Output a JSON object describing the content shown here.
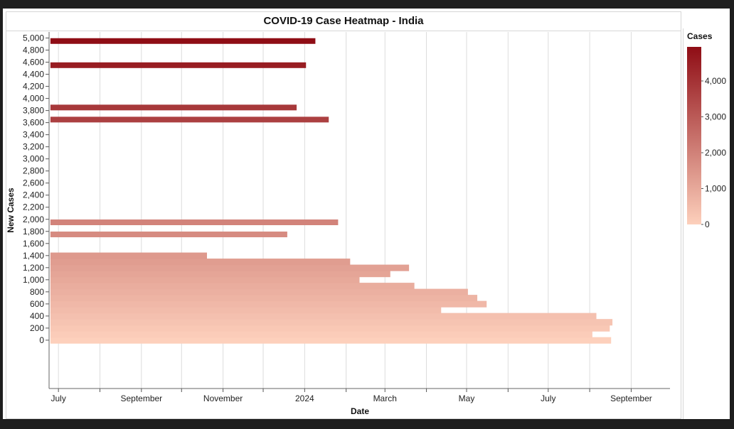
{
  "chart_data": {
    "type": "heatmap",
    "title": "COVID-19 Case Heatmap - India",
    "xlabel": "Date",
    "ylabel": "New Cases",
    "x_ticks": [
      "July",
      "September",
      "November",
      "2024",
      "March",
      "May",
      "July",
      "September"
    ],
    "x_range": [
      "2023-06-24",
      "2024-09-30"
    ],
    "y_ticks": [
      0,
      200,
      400,
      600,
      800,
      "1,000",
      "1,200",
      "1,400",
      "1,600",
      "1,800",
      "2,000",
      "2,200",
      "2,400",
      "2,600",
      "2,800",
      "3,000",
      "3,200",
      "3,400",
      "3,600",
      "3,800",
      "4,000",
      "4,200",
      "4,400",
      "4,600",
      "4,800",
      "5,000"
    ],
    "ylim": [
      -800,
      5100
    ],
    "grid": true,
    "legend": {
      "title": "Cases",
      "position": "right",
      "ticks": [
        "4,000",
        "3,000",
        "2,000",
        "1,000",
        "0"
      ],
      "range": [
        0,
        4950
      ],
      "color_low": "#fdd0bc",
      "color_high": "#8f0d15"
    },
    "bars": [
      {
        "cases": 0,
        "end": "2024-08-17"
      },
      {
        "cases": 100,
        "end": "2024-08-03"
      },
      {
        "cases": 200,
        "end": "2024-08-16"
      },
      {
        "cases": 300,
        "end": "2024-08-18"
      },
      {
        "cases": 400,
        "end": "2024-08-06"
      },
      {
        "cases": 500,
        "end": "2024-04-12"
      },
      {
        "cases": 600,
        "end": "2024-05-16"
      },
      {
        "cases": 700,
        "end": "2024-05-09"
      },
      {
        "cases": 800,
        "end": "2024-05-02"
      },
      {
        "cases": 900,
        "end": "2024-03-23"
      },
      {
        "cases": 1000,
        "end": "2024-02-11"
      },
      {
        "cases": 1100,
        "end": "2024-03-05"
      },
      {
        "cases": 1200,
        "end": "2024-03-19"
      },
      {
        "cases": 1300,
        "end": "2024-02-04"
      },
      {
        "cases": 1400,
        "end": "2023-10-20"
      },
      {
        "cases": 1750,
        "end": "2023-12-19"
      },
      {
        "cases": 1950,
        "end": "2024-01-26"
      },
      {
        "cases": 3650,
        "end": "2024-01-19"
      },
      {
        "cases": 3850,
        "end": "2023-12-26"
      },
      {
        "cases": 4550,
        "end": "2024-01-02"
      },
      {
        "cases": 4950,
        "end": "2024-01-09"
      }
    ]
  }
}
